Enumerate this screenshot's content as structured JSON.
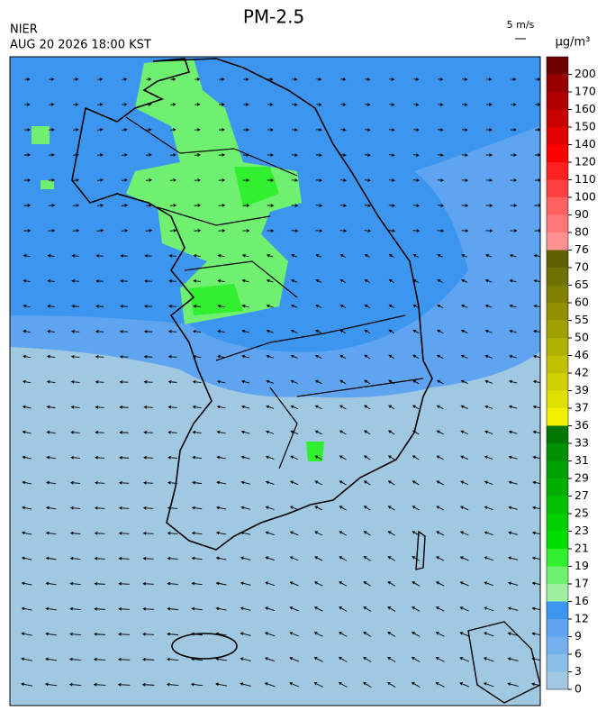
{
  "header": {
    "title": "PM-2.5",
    "source": "NIER",
    "datetime": "AUG 20 2026 18:00 KST",
    "wind_scale": "5 m/s",
    "unit": "μg/m³"
  },
  "colorbar": {
    "ticks": [
      0,
      3,
      6,
      9,
      12,
      16,
      17,
      19,
      21,
      23,
      25,
      27,
      29,
      31,
      33,
      36,
      37,
      39,
      42,
      46,
      50,
      55,
      60,
      65,
      70,
      76,
      80,
      90,
      100,
      110,
      120,
      140,
      150,
      160,
      170,
      200
    ],
    "colors": [
      "#a0c8e0",
      "#8cbce8",
      "#76b0ec",
      "#5ea4f0",
      "#3c96f0",
      "#a0f0a0",
      "#70f070",
      "#30f030",
      "#00e000",
      "#00d000",
      "#00c000",
      "#00b000",
      "#00a000",
      "#009000",
      "#007800",
      "#f0f000",
      "#e0e000",
      "#d0d000",
      "#c0c000",
      "#b0b000",
      "#a0a000",
      "#909000",
      "#808000",
      "#707000",
      "#606000",
      "#ff9090",
      "#ff7878",
      "#ff6060",
      "#ff4040",
      "#ff2020",
      "#ff0000",
      "#e00000",
      "#c80000",
      "#b00000",
      "#980000",
      "#700000"
    ]
  }
}
